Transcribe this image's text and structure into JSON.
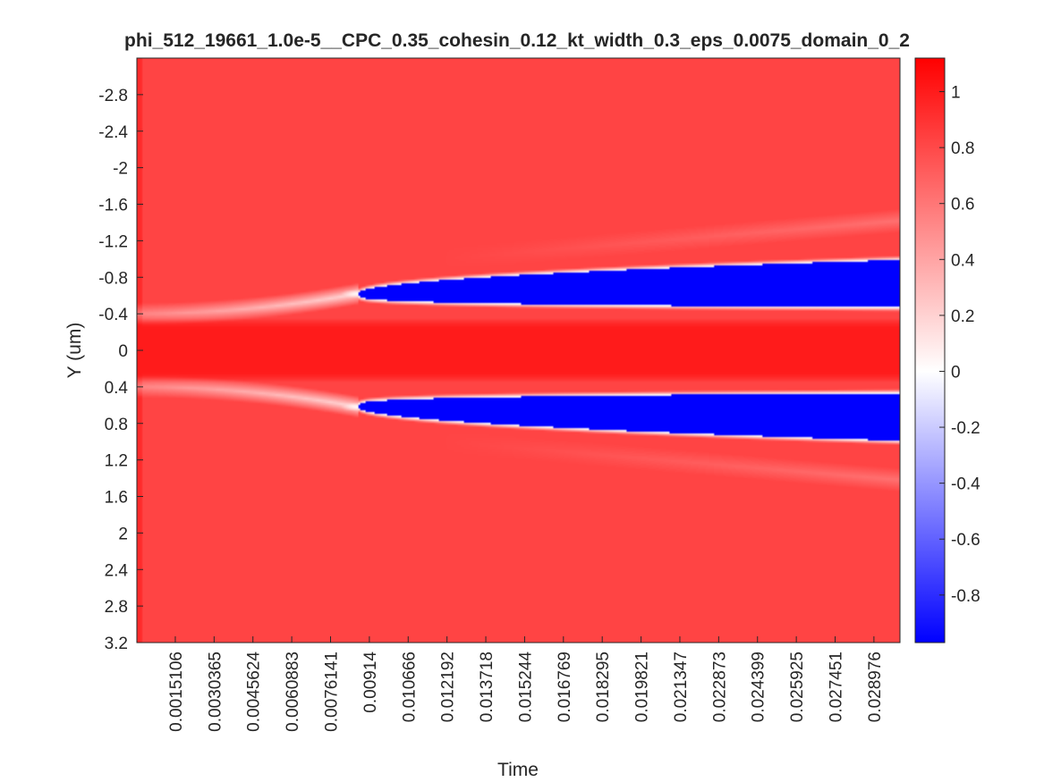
{
  "chart_data": {
    "type": "heatmap",
    "title": "phi_512_19661_1.0e-5__CPC_0.35_cohesin_0.12_kt_width_0.3_eps_0.0075_domain_0_2",
    "xlabel": "Time",
    "ylabel": "Y (um)",
    "xlim": [
      0.0,
      0.03
    ],
    "ylim": [
      -3.2,
      3.2
    ],
    "y_direction": "reversed",
    "x_ticks": [
      0.0015106,
      0.0030365,
      0.0045624,
      0.0060883,
      0.0076141,
      0.00914,
      0.010666,
      0.012192,
      0.013718,
      0.015244,
      0.016769,
      0.018295,
      0.019821,
      0.021347,
      0.022873,
      0.024399,
      0.025925,
      0.027451,
      0.028976
    ],
    "x_tick_labels": [
      "0.0015106",
      "0.0030365",
      "0.0045624",
      "0.0060883",
      "0.0076141",
      "0.00914",
      "0.010666",
      "0.012192",
      "0.013718",
      "0.015244",
      "0.016769",
      "0.018295",
      "0.019821",
      "0.021347",
      "0.022873",
      "0.024399",
      "0.025925",
      "0.027451",
      "0.028976"
    ],
    "y_ticks": [
      -2.8,
      -2.4,
      -2.0,
      -1.6,
      -1.2,
      -0.8,
      -0.4,
      0.0,
      0.4,
      0.8,
      1.2,
      1.6,
      2.0,
      2.4,
      2.8,
      3.2
    ],
    "y_tick_labels": [
      "-2.8",
      "-2.4",
      "-2",
      "-1.6",
      "-1.2",
      "-0.8",
      "-0.4",
      "0",
      "0.4",
      "0.8",
      "1.2",
      "1.6",
      "2",
      "2.4",
      "2.8",
      "3.2"
    ],
    "colorbar": {
      "colormap": "blue-white-red",
      "low_color": "#0000ff",
      "mid_color": "#ffffff",
      "high_color": "#ff0000",
      "range": [
        -0.97,
        1.12
      ],
      "ticks": [
        1.0,
        0.8,
        0.6,
        0.4,
        0.2,
        0.0,
        -0.2,
        -0.4,
        -0.6,
        -0.8
      ],
      "tick_labels": [
        "1",
        "0.8",
        "0.6",
        "0.4",
        "0.2",
        "0",
        "-0.2",
        "-0.4",
        "-0.6",
        "-0.8"
      ]
    },
    "field": {
      "background_value": 0.82,
      "center_band": {
        "y_center": 0.0,
        "half_width": 0.35,
        "value": 1.0
      },
      "blue_lobes": [
        {
          "side": "upper",
          "tip_time": 0.0087,
          "tip_y": -0.62,
          "end_time": 0.03,
          "inner_y": -0.47,
          "outer_y": -0.99,
          "value": -0.97
        },
        {
          "side": "lower",
          "tip_time": 0.0087,
          "tip_y": 0.62,
          "end_time": 0.03,
          "inner_y": 0.47,
          "outer_y": 0.99,
          "value": -0.97
        }
      ],
      "faint_bands": [
        {
          "side": "upper",
          "start_time": 0.012,
          "start_y": -1.0,
          "end_time": 0.03,
          "end_y": -1.42,
          "value": 0.62
        },
        {
          "side": "lower",
          "start_time": 0.012,
          "start_y": 1.0,
          "end_time": 0.03,
          "end_y": 1.42,
          "value": 0.62
        }
      ]
    }
  }
}
